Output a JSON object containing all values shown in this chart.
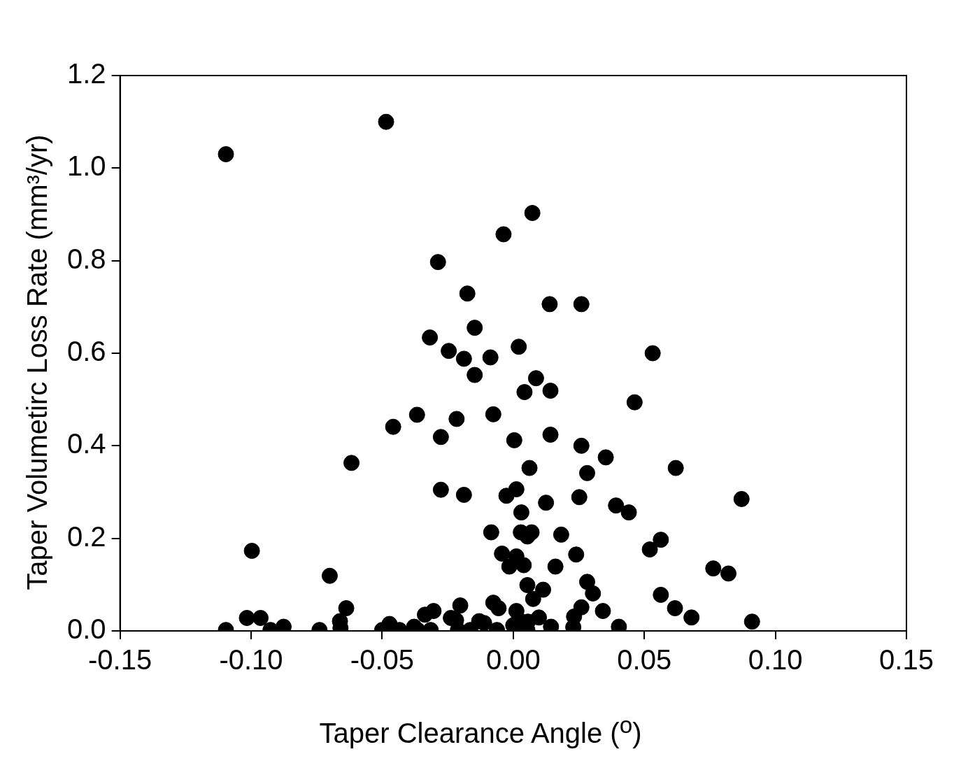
{
  "chart_data": {
    "type": "scatter",
    "xlabel": "Taper Clearance Angle ($^{o}$)",
    "ylabel": "Taper Volumetirc Loss Rate (mm³/yr)",
    "xlim": [
      -0.15,
      0.15
    ],
    "xticks": [
      {
        "value": -0.15,
        "label": "-0.15"
      },
      {
        "value": -0.1,
        "label": "-0.10"
      },
      {
        "value": -0.05,
        "label": "-0.05"
      },
      {
        "value": 0,
        "label": "0.00"
      },
      {
        "value": 0.05,
        "label": "0.05"
      },
      {
        "value": 0.1,
        "label": "0.10"
      },
      {
        "value": 0.15,
        "label": "0.15"
      }
    ],
    "ylim": [
      0,
      1.2
    ],
    "yticks": [
      {
        "value": 0,
        "label": "0.0"
      },
      {
        "value": 0.2,
        "label": "0.2"
      },
      {
        "value": 0.4,
        "label": "0.4"
      },
      {
        "value": 0.6,
        "label": "0.6"
      },
      {
        "value": 0.8,
        "label": "0.8"
      },
      {
        "value": 1,
        "label": "1.0"
      },
      {
        "value": 1.2,
        "label": "1.2"
      }
    ],
    "grid": false,
    "legend": false,
    "marker": "circle",
    "series": [
      {
        "color": "#000000",
        "x": [
          -0.1096,
          -0.0485,
          0.0073,
          -0.0037,
          -0.0287,
          -0.0175,
          0.0139,
          0.026,
          -0.0147,
          -0.0318,
          -0.0246,
          -0.0188,
          -0.0087,
          0.0021,
          0.0532,
          -0.0147,
          0.0087,
          0.0043,
          0.0142,
          0.0463,
          -0.0367,
          -0.0076,
          -0.0216,
          -0.0458,
          -0.0276,
          0.0004,
          0.0142,
          0.026,
          0.0353,
          -0.0617,
          0.0062,
          0.062,
          0.0282,
          -0.0276,
          -0.0188,
          0.0012,
          -0.0026,
          0.0252,
          0.0871,
          0.0125,
          0.0392,
          0.0441,
          0.0031,
          -0.0084,
          0.0029,
          0.007,
          0.0054,
          0.0183,
          0.0563,
          -0.0997,
          -0.0043,
          0.0012,
          0.024,
          0.0521,
          -0.0015,
          0.004,
          0.0161,
          0.0763,
          0.0821,
          -0.07,
          0.0054,
          0.0114,
          0.0282,
          0.0304,
          0.0563,
          0.0076,
          -0.0637,
          -0.0202,
          -0.0076,
          -0.0056,
          0.026,
          0.0342,
          0.0617,
          -0.0304,
          -0.0337,
          0.0012,
          -0.1016,
          -0.0964,
          -0.0661,
          -0.0238,
          -0.0218,
          -0.013,
          -0.0111,
          0.0021,
          0.0098,
          0.0232,
          0.068,
          0.0911,
          -0.0472,
          -0.0876,
          -0.0659,
          -0.0378,
          0,
          0.0056,
          0.0144,
          0.0229,
          0.0403,
          -0.1096,
          -0.0926,
          -0.0739,
          -0.05,
          -0.0434,
          -0.0365,
          -0.0315,
          -0.0211,
          -0.0164,
          -0.0062,
          0.0054
        ],
        "values": [
          1.03,
          1.1,
          0.903,
          0.857,
          0.797,
          0.729,
          0.706,
          0.706,
          0.655,
          0.634,
          0.605,
          0.588,
          0.591,
          0.614,
          0.6,
          0.553,
          0.546,
          0.516,
          0.519,
          0.494,
          0.467,
          0.468,
          0.458,
          0.441,
          0.419,
          0.412,
          0.424,
          0.4,
          0.375,
          0.363,
          0.352,
          0.352,
          0.341,
          0.305,
          0.294,
          0.306,
          0.292,
          0.289,
          0.285,
          0.277,
          0.271,
          0.256,
          0.256,
          0.213,
          0.213,
          0.213,
          0.204,
          0.208,
          0.197,
          0.173,
          0.167,
          0.161,
          0.165,
          0.176,
          0.139,
          0.142,
          0.139,
          0.135,
          0.124,
          0.119,
          0.099,
          0.089,
          0.106,
          0.081,
          0.078,
          0.069,
          0.049,
          0.055,
          0.061,
          0.049,
          0.051,
          0.043,
          0.049,
          0.043,
          0.035,
          0.043,
          0.028,
          0.028,
          0.021,
          0.028,
          0.023,
          0.021,
          0.017,
          0.024,
          0.029,
          0.031,
          0.029,
          0.02,
          0.015,
          0.009,
          0.006,
          0.009,
          0.012,
          0.02,
          0.009,
          0.008,
          0.009,
          0.002,
          0.002,
          0.002,
          0.002,
          0.002,
          0.002,
          0.002,
          0.002,
          0.002,
          0.002,
          0.002
        ]
      }
    ]
  }
}
